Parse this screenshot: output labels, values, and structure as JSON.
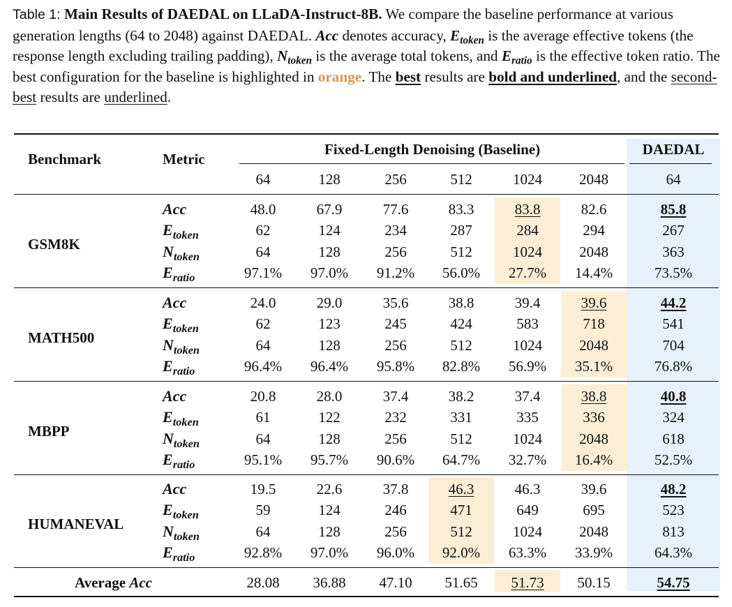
{
  "caption": {
    "label": "Table 1:",
    "title": "Main Results of DAEDAL on LLaDA-Instruct-8B.",
    "t1": " We compare the baseline performance at various generation lengths (64 to 2048) against DAEDAL. ",
    "acc": "Acc",
    "t2": " denotes accuracy, ",
    "e_main": "E",
    "e_sub": "token",
    "t3": " is the average effective tokens (the response length excluding trailing padding), ",
    "n_main": "N",
    "n_sub": "token",
    "t4": " is the average total tokens, and ",
    "r_main": "E",
    "r_sub": "ratio",
    "t5": " is the effective token ratio. The best configuration for the baseline is highlighted in ",
    "orange_word": "orange",
    "t6": ". The ",
    "best_word": "best",
    "t7": " results are ",
    "bold_ul": "bold and underlined",
    "t8": ", and the ",
    "second_best": "second-best",
    "t9": " results are ",
    "underlined_word": "underlined",
    "t10": "."
  },
  "header": {
    "benchmark": "Benchmark",
    "metric": "Metric",
    "baseline_group": "Fixed-Length Denoising (Baseline)",
    "daedal": "DAEDAL",
    "lengths": [
      "64",
      "128",
      "256",
      "512",
      "1024",
      "2048"
    ],
    "daedal_length": "64"
  },
  "metric_labels": [
    {
      "main": "Acc",
      "sub": ""
    },
    {
      "main": "E",
      "sub": "token"
    },
    {
      "main": "N",
      "sub": "token"
    },
    {
      "main": "E",
      "sub": "ratio"
    }
  ],
  "benchmarks": [
    {
      "name": "GSM8K",
      "best_baseline_col": 4,
      "rows": [
        [
          "48.0",
          "67.9",
          "77.6",
          "83.3",
          "83.8",
          "82.6",
          "85.8"
        ],
        [
          "62",
          "124",
          "234",
          "287",
          "284",
          "294",
          "267"
        ],
        [
          "64",
          "128",
          "256",
          "512",
          "1024",
          "2048",
          "363"
        ],
        [
          "97.1%",
          "97.0%",
          "91.2%",
          "56.0%",
          "27.7%",
          "14.4%",
          "73.5%"
        ]
      ]
    },
    {
      "name": "MATH500",
      "best_baseline_col": 5,
      "rows": [
        [
          "24.0",
          "29.0",
          "35.6",
          "38.8",
          "39.4",
          "39.6",
          "44.2"
        ],
        [
          "62",
          "123",
          "245",
          "424",
          "583",
          "718",
          "541"
        ],
        [
          "64",
          "128",
          "256",
          "512",
          "1024",
          "2048",
          "704"
        ],
        [
          "96.4%",
          "96.4%",
          "95.8%",
          "82.8%",
          "56.9%",
          "35.1%",
          "76.8%"
        ]
      ]
    },
    {
      "name": "MBPP",
      "best_baseline_col": 5,
      "rows": [
        [
          "20.8",
          "28.0",
          "37.4",
          "38.2",
          "37.4",
          "38.8",
          "40.8"
        ],
        [
          "61",
          "122",
          "232",
          "331",
          "335",
          "336",
          "324"
        ],
        [
          "64",
          "128",
          "256",
          "512",
          "1024",
          "2048",
          "618"
        ],
        [
          "95.1%",
          "95.7%",
          "90.6%",
          "64.7%",
          "32.7%",
          "16.4%",
          "52.5%"
        ]
      ]
    },
    {
      "name": "HUMANEVAL",
      "best_baseline_col": 3,
      "rows": [
        [
          "19.5",
          "22.6",
          "37.8",
          "46.3",
          "46.3",
          "39.6",
          "48.2"
        ],
        [
          "59",
          "124",
          "246",
          "471",
          "649",
          "695",
          "523"
        ],
        [
          "64",
          "128",
          "256",
          "512",
          "1024",
          "2048",
          "813"
        ],
        [
          "92.8%",
          "97.0%",
          "96.0%",
          "92.0%",
          "63.3%",
          "33.9%",
          "64.3%"
        ]
      ]
    }
  ],
  "average": {
    "label": "Average ",
    "label_math": "Acc",
    "values": [
      "28.08",
      "36.88",
      "47.10",
      "51.65",
      "51.73",
      "50.15",
      "54.75"
    ],
    "best_baseline_col": 4
  },
  "colors": {
    "orange_highlight": "#fbeed5",
    "blue_highlight": "#e6f1fb",
    "orange_text": "#d6965a"
  }
}
